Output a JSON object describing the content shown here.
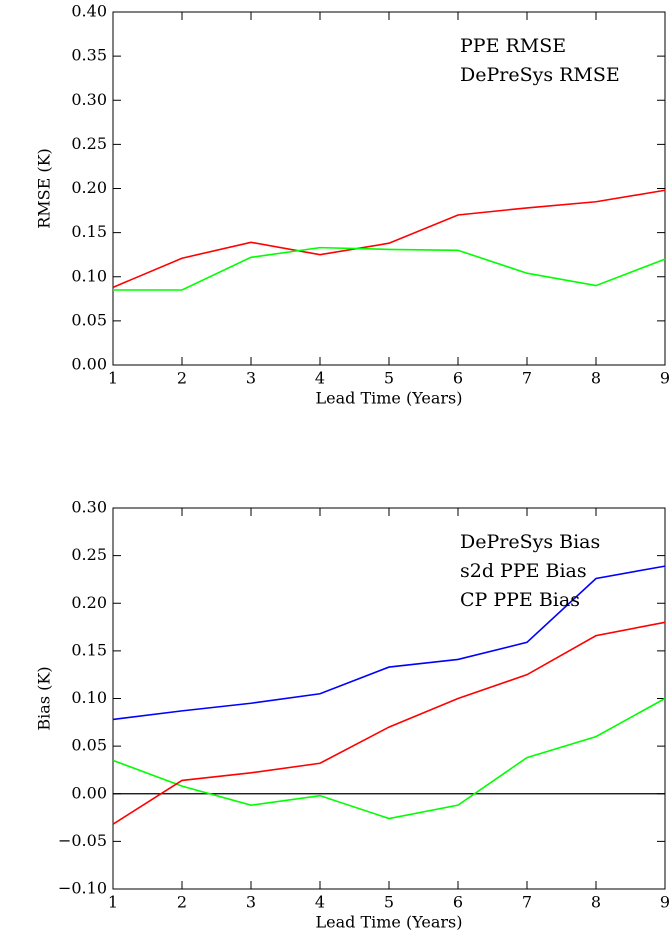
{
  "chart_data": [
    {
      "type": "line",
      "xlabel": "Lead Time (Years)",
      "ylabel": "RMSE (K)",
      "x": [
        1,
        2,
        3,
        4,
        5,
        6,
        7,
        8,
        9
      ],
      "xlim": [
        1,
        9
      ],
      "xticks": [
        1,
        2,
        3,
        4,
        5,
        6,
        7,
        8,
        9
      ],
      "ylim": [
        0,
        0.4
      ],
      "yticks": [
        {
          "value": 0,
          "label": "0.00"
        },
        {
          "value": 0.05,
          "label": "0.05"
        },
        {
          "value": 0.1,
          "label": "0.10"
        },
        {
          "value": 0.15,
          "label": "0.15"
        },
        {
          "value": 0.2,
          "label": "0.20"
        },
        {
          "value": 0.25,
          "label": "0.25"
        },
        {
          "value": 0.3,
          "label": "0.30"
        },
        {
          "value": 0.35,
          "label": "0.35"
        },
        {
          "value": 0.4,
          "label": "0.40"
        }
      ],
      "legend": "upper right",
      "series": [
        {
          "name": "PPE RMSE",
          "color": "#ff0000",
          "values": [
            0.088,
            0.121,
            0.139,
            0.125,
            0.138,
            0.17,
            0.178,
            0.185,
            0.198
          ]
        },
        {
          "name": "DePreSys RMSE",
          "color": "#00ff00",
          "values": [
            0.085,
            0.085,
            0.122,
            0.133,
            0.131,
            0.13,
            0.104,
            0.09,
            0.12
          ]
        }
      ]
    },
    {
      "type": "line",
      "xlabel": "Lead Time (Years)",
      "ylabel": "Bias (K)",
      "x": [
        1,
        2,
        3,
        4,
        5,
        6,
        7,
        8,
        9
      ],
      "xlim": [
        1,
        9
      ],
      "xticks": [
        1,
        2,
        3,
        4,
        5,
        6,
        7,
        8,
        9
      ],
      "ylim": [
        -0.1,
        0.3
      ],
      "yticks": [
        {
          "value": -0.1,
          "label": "−0.10"
        },
        {
          "value": -0.05,
          "label": "−0.05"
        },
        {
          "value": 0,
          "label": "0.00"
        },
        {
          "value": 0.05,
          "label": "0.05"
        },
        {
          "value": 0.1,
          "label": "0.10"
        },
        {
          "value": 0.15,
          "label": "0.15"
        },
        {
          "value": 0.2,
          "label": "0.20"
        },
        {
          "value": 0.25,
          "label": "0.25"
        },
        {
          "value": 0.3,
          "label": "0.30"
        }
      ],
      "reference_line": 0,
      "legend": "upper right",
      "series": [
        {
          "name": "DePreSys Bias",
          "color": "#00ff00",
          "values": [
            0.035,
            0.008,
            -0.012,
            -0.002,
            -0.026,
            -0.012,
            0.038,
            0.06,
            0.1
          ]
        },
        {
          "name": "s2d PPE Bias",
          "color": "#ff0000",
          "values": [
            -0.032,
            0.014,
            0.022,
            0.032,
            0.07,
            0.1,
            0.125,
            0.166,
            0.18
          ]
        },
        {
          "name": "CP PPE Bias",
          "color": "#0000ff",
          "values": [
            0.078,
            0.087,
            0.095,
            0.105,
            0.133,
            0.141,
            0.159,
            0.226,
            0.239
          ]
        }
      ]
    }
  ]
}
